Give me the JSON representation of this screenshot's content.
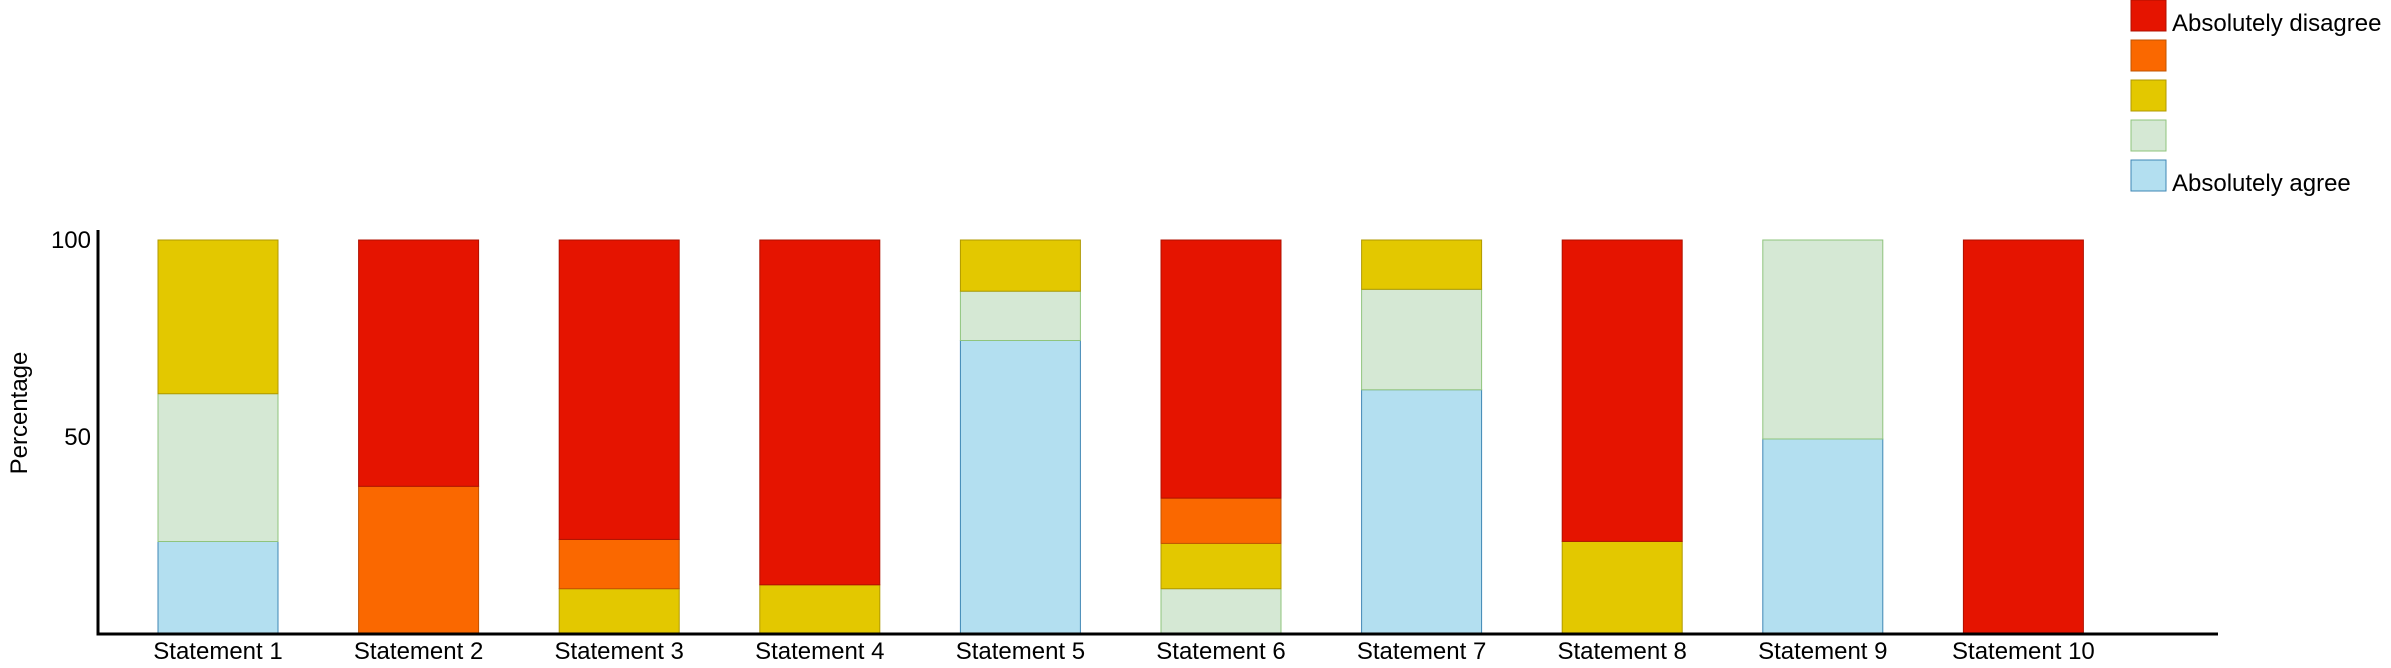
{
  "chart_data": {
    "type": "bar",
    "stacked": true,
    "ylabel": "Percentage",
    "xlabel": "",
    "ylim": [
      0,
      100
    ],
    "yticks": [
      50,
      100
    ],
    "grid": false,
    "legend_position": "top-right",
    "categories": [
      "Statement 1",
      "Statement 2",
      "Statement 3",
      "Statement 4",
      "Statement 5",
      "Statement 6",
      "Statement 7",
      "Statement 8",
      "Statement 9",
      "Statement 10"
    ],
    "series": [
      {
        "name": "Absolutely agree",
        "color": "#b3dff0",
        "stroke": "#3f87b5",
        "values": [
          23.5,
          0,
          0,
          0,
          74.5,
          0,
          62,
          0,
          49.5,
          0
        ]
      },
      {
        "name": "",
        "color": "#d5e8d4",
        "stroke": "#8fc47d",
        "values": [
          37.5,
          0,
          0,
          0,
          12.5,
          11.5,
          25.5,
          0,
          50.5,
          0
        ]
      },
      {
        "name": "",
        "color": "#e3c800",
        "stroke": "#b09a00",
        "values": [
          39,
          0,
          11.5,
          12.5,
          13,
          11.5,
          12.5,
          23.5,
          0,
          0
        ]
      },
      {
        "name": "",
        "color": "#fa6800",
        "stroke": "#c25300",
        "values": [
          0,
          37.5,
          12.5,
          0,
          0,
          11.5,
          0,
          0,
          0,
          0
        ]
      },
      {
        "name": "Absolutely disagree",
        "color": "#e51400",
        "stroke": "#b01000",
        "values": [
          0,
          62.5,
          76,
          87.5,
          0,
          65.5,
          0,
          76.5,
          0,
          100
        ]
      }
    ]
  }
}
